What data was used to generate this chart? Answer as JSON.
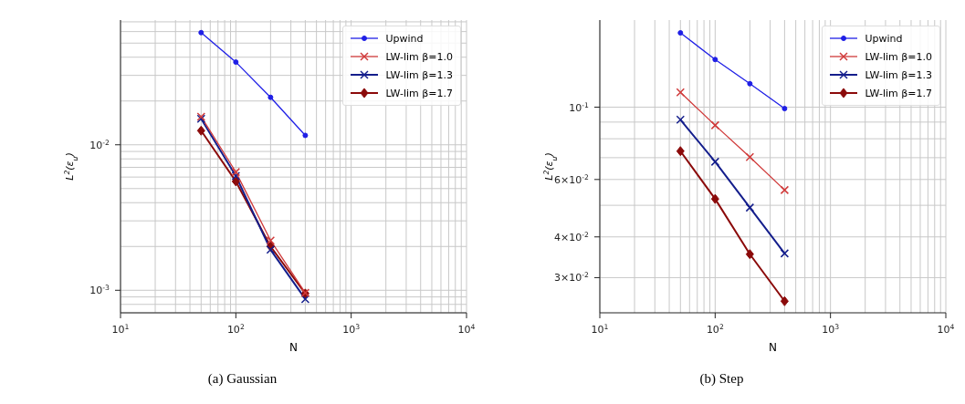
{
  "chart_data": [
    {
      "type": "line",
      "annotations": [
        "(a) Gaussian"
      ],
      "xlabel": "N",
      "ylabel": "L$^{2}$(ε$_{u}$)",
      "log": "xy",
      "grid": true,
      "legend": "top right",
      "x": [
        50,
        100,
        200,
        400
      ],
      "xlim": [
        10,
        10000
      ],
      "xticks": [
        {
          "value": 10,
          "label": "10$^{1}$"
        },
        {
          "value": 100,
          "label": "10$^{2}$"
        },
        {
          "value": 1000,
          "label": "10$^{3}$"
        },
        {
          "value": 10000,
          "label": "10$^{4}$"
        }
      ],
      "ylim": [
        0.0007,
        0.072
      ],
      "yticks": [
        {
          "value": 0.001,
          "label": "10$^{-3}$"
        },
        {
          "value": 0.01,
          "label": "10$^{-2}$"
        }
      ],
      "series": [
        {
          "name": "Upwind",
          "color": "#1f1fe6",
          "marker": "circle",
          "values": [
            0.059,
            0.037,
            0.0212,
            0.0116
          ]
        },
        {
          "name": "LW-lim β=1.0",
          "color": "#d03a3a",
          "marker": "cross",
          "values": [
            0.0156,
            0.0065,
            0.0022,
            0.00096
          ]
        },
        {
          "name": "LW-lim β=1.3",
          "color": "#141e8c",
          "marker": "cross",
          "values": [
            0.0151,
            0.0061,
            0.0019,
            0.00087
          ]
        },
        {
          "name": "LW-lim β=1.7",
          "color": "#8b0a0a",
          "marker": "diamond",
          "values": [
            0.0125,
            0.0056,
            0.002,
            0.00095
          ]
        }
      ]
    },
    {
      "type": "line",
      "annotations": [
        "(b) Step"
      ],
      "xlabel": "N",
      "ylabel": "L$^{2}$(ε$_{u}$)",
      "log": "xy",
      "grid": true,
      "legend": "top right",
      "x": [
        50,
        100,
        200,
        400
      ],
      "xlim": [
        10,
        10000
      ],
      "xticks": [
        {
          "value": 10,
          "label": "10$^{1}$"
        },
        {
          "value": 100,
          "label": "10$^{2}$"
        },
        {
          "value": 1000,
          "label": "10$^{3}$"
        },
        {
          "value": 10000,
          "label": "10$^{4}$"
        }
      ],
      "ylim": [
        0.0234,
        0.185
      ],
      "yticks": [
        {
          "value": 0.03,
          "label": "3×10$^{-2}$"
        },
        {
          "value": 0.04,
          "label": "4×10$^{-2}$"
        },
        {
          "value": 0.06,
          "label": "6×10$^{-2}$"
        },
        {
          "value": 0.1,
          "label": "10$^{-1}$"
        }
      ],
      "series": [
        {
          "name": "Upwind",
          "color": "#1f1fe6",
          "marker": "circle",
          "values": [
            0.169,
            0.14,
            0.118,
            0.099
          ]
        },
        {
          "name": "LW-lim β=1.0",
          "color": "#d03a3a",
          "marker": "cross",
          "values": [
            0.111,
            0.088,
            0.0703,
            0.0557
          ]
        },
        {
          "name": "LW-lim β=1.3",
          "color": "#141e8c",
          "marker": "cross",
          "values": [
            0.0915,
            0.068,
            0.0492,
            0.0356
          ]
        },
        {
          "name": "LW-lim β=1.7",
          "color": "#8b0a0a",
          "marker": "diamond",
          "values": [
            0.0733,
            0.0523,
            0.0354,
            0.0254
          ]
        }
      ]
    }
  ]
}
